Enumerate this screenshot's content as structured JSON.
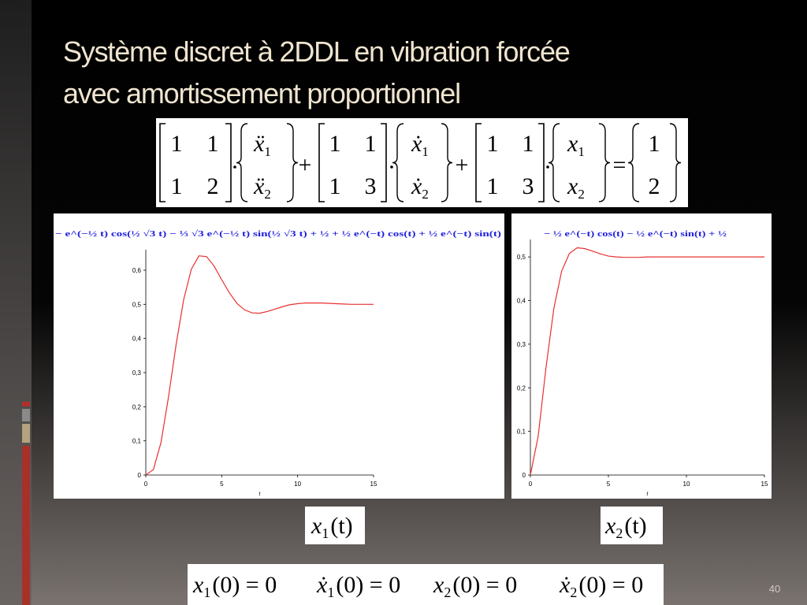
{
  "title": [
    "Système discret à 2DDL en vibration forcée",
    "avec amortissement proportionnel"
  ],
  "equation": {
    "mass_matrix": [
      [
        1,
        1
      ],
      [
        1,
        2
      ]
    ],
    "acceleration": [
      {
        "symbol": "ẍ",
        "index": "1"
      },
      {
        "symbol": "ẍ",
        "index": "2"
      }
    ],
    "damping_matrix": [
      [
        1,
        1
      ],
      [
        1,
        3
      ]
    ],
    "velocity": [
      {
        "symbol": "ẋ",
        "index": "1"
      },
      {
        "symbol": "ẋ",
        "index": "2"
      }
    ],
    "stiffness_matrix": [
      [
        1,
        1
      ],
      [
        1,
        3
      ]
    ],
    "displacement": [
      {
        "symbol": "x",
        "index": "1"
      },
      {
        "symbol": "x",
        "index": "2"
      }
    ],
    "force": [
      1,
      2
    ],
    "operators": [
      "+",
      "+",
      "="
    ]
  },
  "chart_data": [
    {
      "type": "line",
      "title": "− e^(−½ t) cos(½ √3 t) − ⅓ √3 e^(−½ t) sin(½ √3 t) + ½ + ½ e^(−t) cos(t) + ½ e^(−t) sin(t)",
      "xlabel": "t",
      "x": [
        0,
        0.5,
        1,
        1.5,
        2,
        2.5,
        3,
        3.5,
        4,
        4.5,
        5,
        5.5,
        6,
        6.5,
        7,
        7.5,
        8,
        8.5,
        9,
        9.5,
        10,
        10.5,
        11,
        11.5,
        12,
        12.5,
        13,
        13.5,
        14,
        14.5,
        15
      ],
      "values": [
        0,
        0.016,
        0.095,
        0.23,
        0.383,
        0.515,
        0.603,
        0.642,
        0.64,
        0.612,
        0.572,
        0.534,
        0.503,
        0.484,
        0.475,
        0.474,
        0.479,
        0.486,
        0.493,
        0.499,
        0.502,
        0.504,
        0.504,
        0.504,
        0.503,
        0.502,
        0.501,
        0.5,
        0.5,
        0.5,
        0.5
      ],
      "color": "#e83030",
      "xlim": [
        0,
        15
      ],
      "ylim": [
        0,
        0.66
      ],
      "xticks": [
        0,
        5,
        10,
        15
      ],
      "yticks": [
        0,
        {
          "value": 0.1,
          "label": "0,1"
        },
        {
          "value": 0.2,
          "label": "0,2"
        },
        {
          "value": 0.3,
          "label": "0,3"
        },
        {
          "value": 0.4,
          "label": "0,4"
        },
        {
          "value": 0.5,
          "label": "0,5"
        },
        {
          "value": 0.6,
          "label": "0,6"
        }
      ]
    },
    {
      "type": "line",
      "title": "− ½ e^(−t) cos(t) − ½ e^(−t) sin(t) + ½",
      "xlabel": "t",
      "x": [
        0,
        0.5,
        1,
        1.5,
        2,
        2.5,
        3,
        3.5,
        4,
        4.5,
        5,
        5.5,
        6,
        6.5,
        7,
        7.5,
        8,
        8.5,
        9,
        9.5,
        10,
        10.5,
        11,
        11.5,
        12,
        12.5,
        13,
        13.5,
        14,
        14.5,
        15
      ],
      "values": [
        0,
        0.089,
        0.246,
        0.381,
        0.467,
        0.508,
        0.521,
        0.519,
        0.513,
        0.507,
        0.502,
        0.5,
        0.499,
        0.499,
        0.499,
        0.5,
        0.5,
        0.5,
        0.5,
        0.5,
        0.5,
        0.5,
        0.5,
        0.5,
        0.5,
        0.5,
        0.5,
        0.5,
        0.5,
        0.5,
        0.5
      ],
      "color": "#e83030",
      "xlim": [
        0,
        15
      ],
      "ylim": [
        0,
        0.54
      ],
      "xticks": [
        0,
        5,
        10,
        15
      ],
      "yticks": [
        0,
        {
          "value": 0.1,
          "label": "0,1"
        },
        {
          "value": 0.2,
          "label": "0,2"
        },
        {
          "value": 0.3,
          "label": "0,3"
        },
        {
          "value": 0.4,
          "label": "0,4"
        },
        {
          "value": 0.5,
          "label": "0,5"
        }
      ]
    }
  ],
  "chart_labels": [
    {
      "symbol": "x",
      "index": "1",
      "argument": "(t)"
    },
    {
      "symbol": "x",
      "index": "2",
      "argument": "(t)"
    }
  ],
  "initial_conditions": [
    {
      "symbol": "x",
      "index": "1",
      "expression": "(0) = 0"
    },
    {
      "symbol": "ẋ",
      "index": "1",
      "expression": "(0) = 0"
    },
    {
      "symbol": "x",
      "index": "2",
      "expression": "(0) = 0"
    },
    {
      "symbol": "ẋ",
      "index": "2",
      "expression": "(0) = 0"
    }
  ],
  "page_number": "40"
}
